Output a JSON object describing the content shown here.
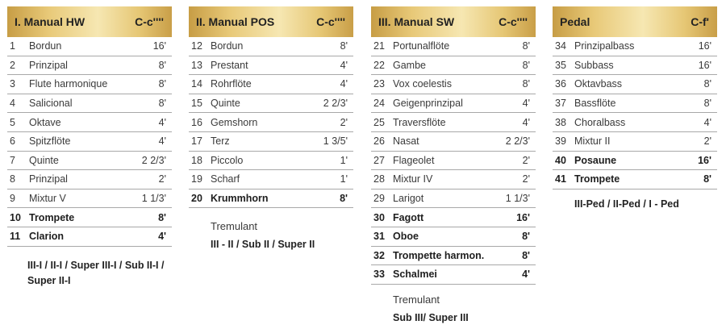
{
  "divisions": [
    {
      "title": "I. Manual HW",
      "range": "C-c''''",
      "stops": [
        {
          "num": "1",
          "name": "Bordun",
          "size": "16'",
          "bold": false
        },
        {
          "num": "2",
          "name": "Prinzipal",
          "size": "8'",
          "bold": false
        },
        {
          "num": "3",
          "name": "Flute harmonique",
          "size": "8'",
          "bold": false
        },
        {
          "num": "4",
          "name": "Salicional",
          "size": "8'",
          "bold": false
        },
        {
          "num": "5",
          "name": "Oktave",
          "size": "4'",
          "bold": false
        },
        {
          "num": "6",
          "name": "Spitzflöte",
          "size": "4'",
          "bold": false
        },
        {
          "num": "7",
          "name": "Quinte",
          "size": "2 2/3'",
          "bold": false
        },
        {
          "num": "8",
          "name": "Prinzipal",
          "size": "2'",
          "bold": false
        },
        {
          "num": "9",
          "name": "Mixtur V",
          "size": "1 1/3'",
          "bold": false
        },
        {
          "num": "10",
          "name": "Trompete",
          "size": "8'",
          "bold": true
        },
        {
          "num": "11",
          "name": "Clarion",
          "size": "4'",
          "bold": true
        }
      ],
      "tremulant": "",
      "couplers": "III-I / II-I / Super III-I / Sub II-I / Super II-I"
    },
    {
      "title": "II. Manual POS",
      "range": "C-c''''",
      "stops": [
        {
          "num": "12",
          "name": "Bordun",
          "size": "8'",
          "bold": false
        },
        {
          "num": "13",
          "name": "Prestant",
          "size": "4'",
          "bold": false
        },
        {
          "num": "14",
          "name": "Rohrflöte",
          "size": "4'",
          "bold": false
        },
        {
          "num": "15",
          "name": "Quinte",
          "size": "2 2/3'",
          "bold": false
        },
        {
          "num": "16",
          "name": "Gemshorn",
          "size": "2'",
          "bold": false
        },
        {
          "num": "17",
          "name": "Terz",
          "size": "1 3/5'",
          "bold": false
        },
        {
          "num": "18",
          "name": "Piccolo",
          "size": "1'",
          "bold": false
        },
        {
          "num": "19",
          "name": "Scharf",
          "size": "1'",
          "bold": false
        },
        {
          "num": "20",
          "name": "Krummhorn",
          "size": "8'",
          "bold": true
        }
      ],
      "tremulant": "Tremulant",
      "couplers": "III - II / Sub II / Super II"
    },
    {
      "title": "III. Manual SW",
      "range": "C-c''''",
      "stops": [
        {
          "num": "21",
          "name": "Portunalflöte",
          "size": "8'",
          "bold": false
        },
        {
          "num": "22",
          "name": "Gambe",
          "size": "8'",
          "bold": false
        },
        {
          "num": "23",
          "name": "Vox coelestis",
          "size": "8'",
          "bold": false
        },
        {
          "num": "24",
          "name": "Geigenprinzipal",
          "size": "4'",
          "bold": false
        },
        {
          "num": "25",
          "name": "Traversflöte",
          "size": "4'",
          "bold": false
        },
        {
          "num": "26",
          "name": "Nasat",
          "size": "2 2/3'",
          "bold": false
        },
        {
          "num": "27",
          "name": "Flageolet",
          "size": "2'",
          "bold": false
        },
        {
          "num": "28",
          "name": "Mixtur IV",
          "size": "2'",
          "bold": false
        },
        {
          "num": "29",
          "name": "Larigot",
          "size": "1 1/3'",
          "bold": false
        },
        {
          "num": "30",
          "name": "Fagott",
          "size": "16'",
          "bold": true
        },
        {
          "num": "31",
          "name": "Oboe",
          "size": "8'",
          "bold": true
        },
        {
          "num": "32",
          "name": "Trompette harmon.",
          "size": "8'",
          "bold": true
        },
        {
          "num": "33",
          "name": "Schalmei",
          "size": "4'",
          "bold": true
        }
      ],
      "tremulant": "Tremulant",
      "couplers": "Sub III/ Super III"
    },
    {
      "title": "Pedal",
      "range": "C-f'",
      "stops": [
        {
          "num": "34",
          "name": "Prinzipalbass",
          "size": "16'",
          "bold": false
        },
        {
          "num": "35",
          "name": "Subbass",
          "size": "16'",
          "bold": false
        },
        {
          "num": "36",
          "name": "Oktavbass",
          "size": "8'",
          "bold": false
        },
        {
          "num": "37",
          "name": "Bassflöte",
          "size": "8'",
          "bold": false
        },
        {
          "num": "38",
          "name": "Choralbass",
          "size": "4'",
          "bold": false
        },
        {
          "num": "39",
          "name": "Mixtur II",
          "size": "2'",
          "bold": false
        },
        {
          "num": "40",
          "name": "Posaune",
          "size": "16'",
          "bold": true
        },
        {
          "num": "41",
          "name": "Trompete",
          "size": "8'",
          "bold": true
        }
      ],
      "tremulant": "",
      "couplers": "III-Ped / II-Ped / I - Ped"
    }
  ]
}
